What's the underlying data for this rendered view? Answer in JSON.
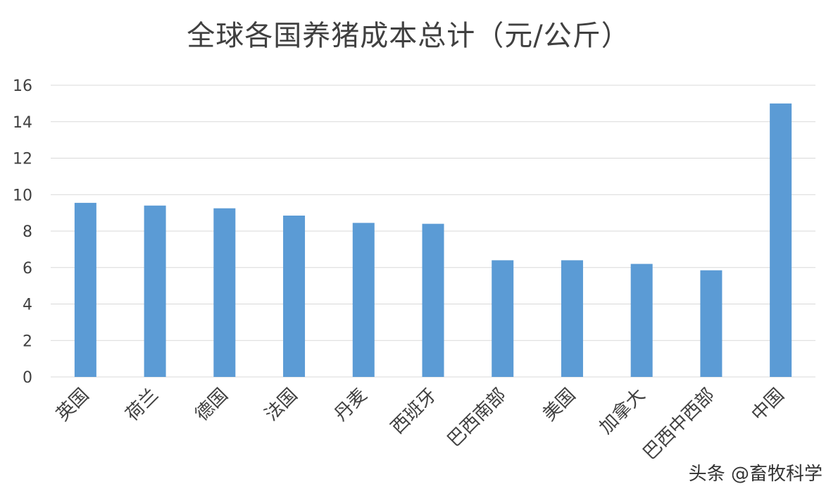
{
  "chart_data": {
    "type": "bar",
    "title": "全球各国养猪成本总计（元/公斤）",
    "xlabel": "",
    "ylabel": "",
    "categories": [
      "英国",
      "荷兰",
      "德国",
      "法国",
      "丹麦",
      "西班牙",
      "巴西南部",
      "美国",
      "加拿大",
      "巴西中西部",
      "中国"
    ],
    "values": [
      9.55,
      9.4,
      9.25,
      8.85,
      8.45,
      8.4,
      6.4,
      6.4,
      6.2,
      5.85,
      15.0
    ],
    "ylim": [
      0,
      16
    ],
    "yticks": [
      "0",
      "2",
      "4",
      "6",
      "8",
      "10",
      "12",
      "14",
      "16"
    ],
    "grid": true,
    "legend": "none",
    "colors": {
      "bar": "#5B9BD5",
      "grid": "#d9d9d9",
      "axis_text": "#404040"
    }
  },
  "watermark": {
    "text": "头条 @畜牧科学"
  }
}
